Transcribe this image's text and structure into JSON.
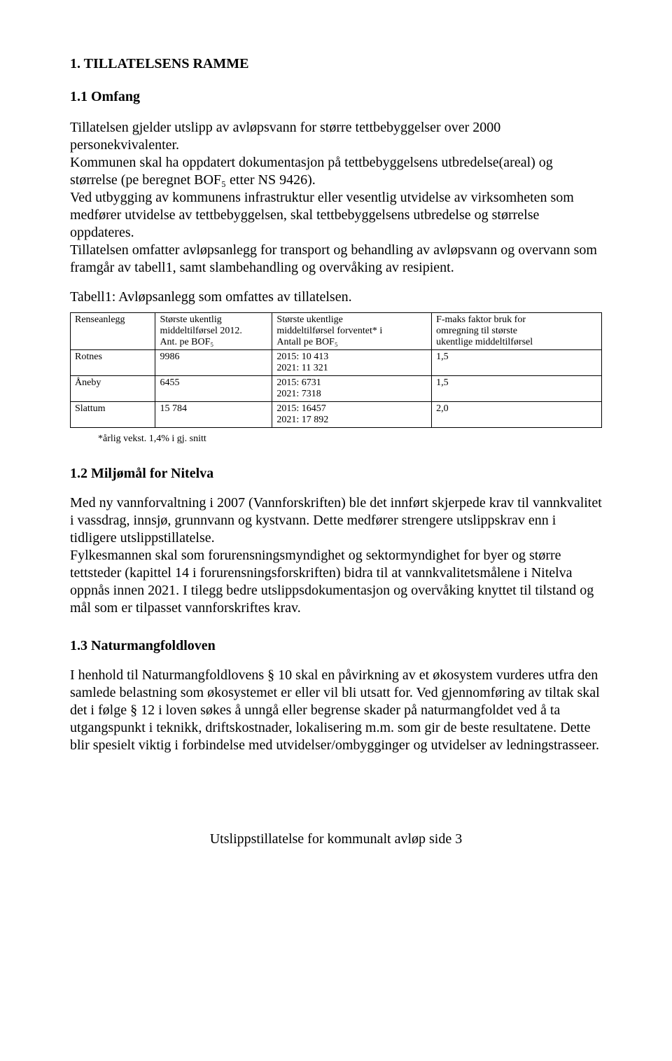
{
  "heading1": "1.     TILLATELSENS RAMME",
  "heading1_1": "1.1 Omfang",
  "para1": "Tillatelsen gjelder utslipp av avløpsvann for større tettbebyggelser over 2000 personekvivalenter.",
  "para2": "Kommunen skal ha oppdatert dokumentasjon på tettbebyggelsens utbredelse(areal) og størrelse (pe beregnet BOF₅ etter NS 9426).",
  "para3": "Ved utbygging av kommunens infrastruktur eller vesentlig utvidelse av virksomheten som medfører utvidelse av tettbebyggelsen, skal tettbebyggelsens utbredelse og størrelse oppdateres.",
  "para4": "Tillatelsen omfatter avløpsanlegg for transport og behandling av avløpsvann og overvann som framgår av tabell1, samt slambehandling og overvåking av resipient.",
  "table_caption": "Tabell1: Avløpsanlegg som omfattes av tillatelsen.",
  "table": {
    "headers": [
      "Renseanlegg",
      "Største ukentlig\nmiddeltilførsel 2012.\nAnt. pe BOF₅",
      "Største ukentlige\nmiddeltilførsel forventet* i\nAntall pe BOF₅",
      "F-maks faktor bruk for\nomregning til største\nukentlige middeltilførsel"
    ],
    "rows": [
      [
        "Rotnes",
        "  9986",
        "2015: 10 413\n2021: 11 321",
        "1,5"
      ],
      [
        "Åneby",
        "  6455",
        "2015:  6731\n2021:  7318",
        "1,5"
      ],
      [
        "Slattum",
        "15 784",
        "2015:  16457\n2021:  17 892",
        "2,0"
      ]
    ]
  },
  "footnote": "*årlig vekst. 1,4% i gj. snitt",
  "heading1_2": "1.2 Miljømål for Nitelva",
  "para5": "Med ny vannforvaltning i 2007 (Vannforskriften) ble det innført skjerpede krav til vannkvalitet i vassdrag, innsjø, grunnvann og kystvann. Dette medfører strengere utslippskrav enn i tidligere utslippstillatelse.",
  "para6": "Fylkesmannen skal som forurensningsmyndighet og sektormyndighet for byer og større tettsteder (kapittel 14 i forurensningsforskriften) bidra til at vannkvalitetsmålene i Nitelva oppnås innen 2021. I tilegg bedre utslippsdokumentasjon og overvåking knyttet til tilstand og mål som er tilpasset vannforskriftes krav.",
  "heading1_3": "1.3 Naturmangfoldloven",
  "para7": "I henhold til Naturmangfoldlovens § 10 skal en påvirkning av et økosystem vurderes utfra den samlede belastning som økosystemet er eller vil bli utsatt for. Ved gjennomføring av tiltak skal det i følge § 12 i loven søkes å unngå eller begrense skader på naturmangfoldet ved å ta utgangspunkt i teknikk, driftskostnader, lokalisering m.m. som gir de beste resultatene. Dette blir spesielt viktig i forbindelse med utvidelser/ombygginger og utvidelser av ledningstrasseer.",
  "footer": "Utslippstillatelse for kommunalt avløp       side 3"
}
